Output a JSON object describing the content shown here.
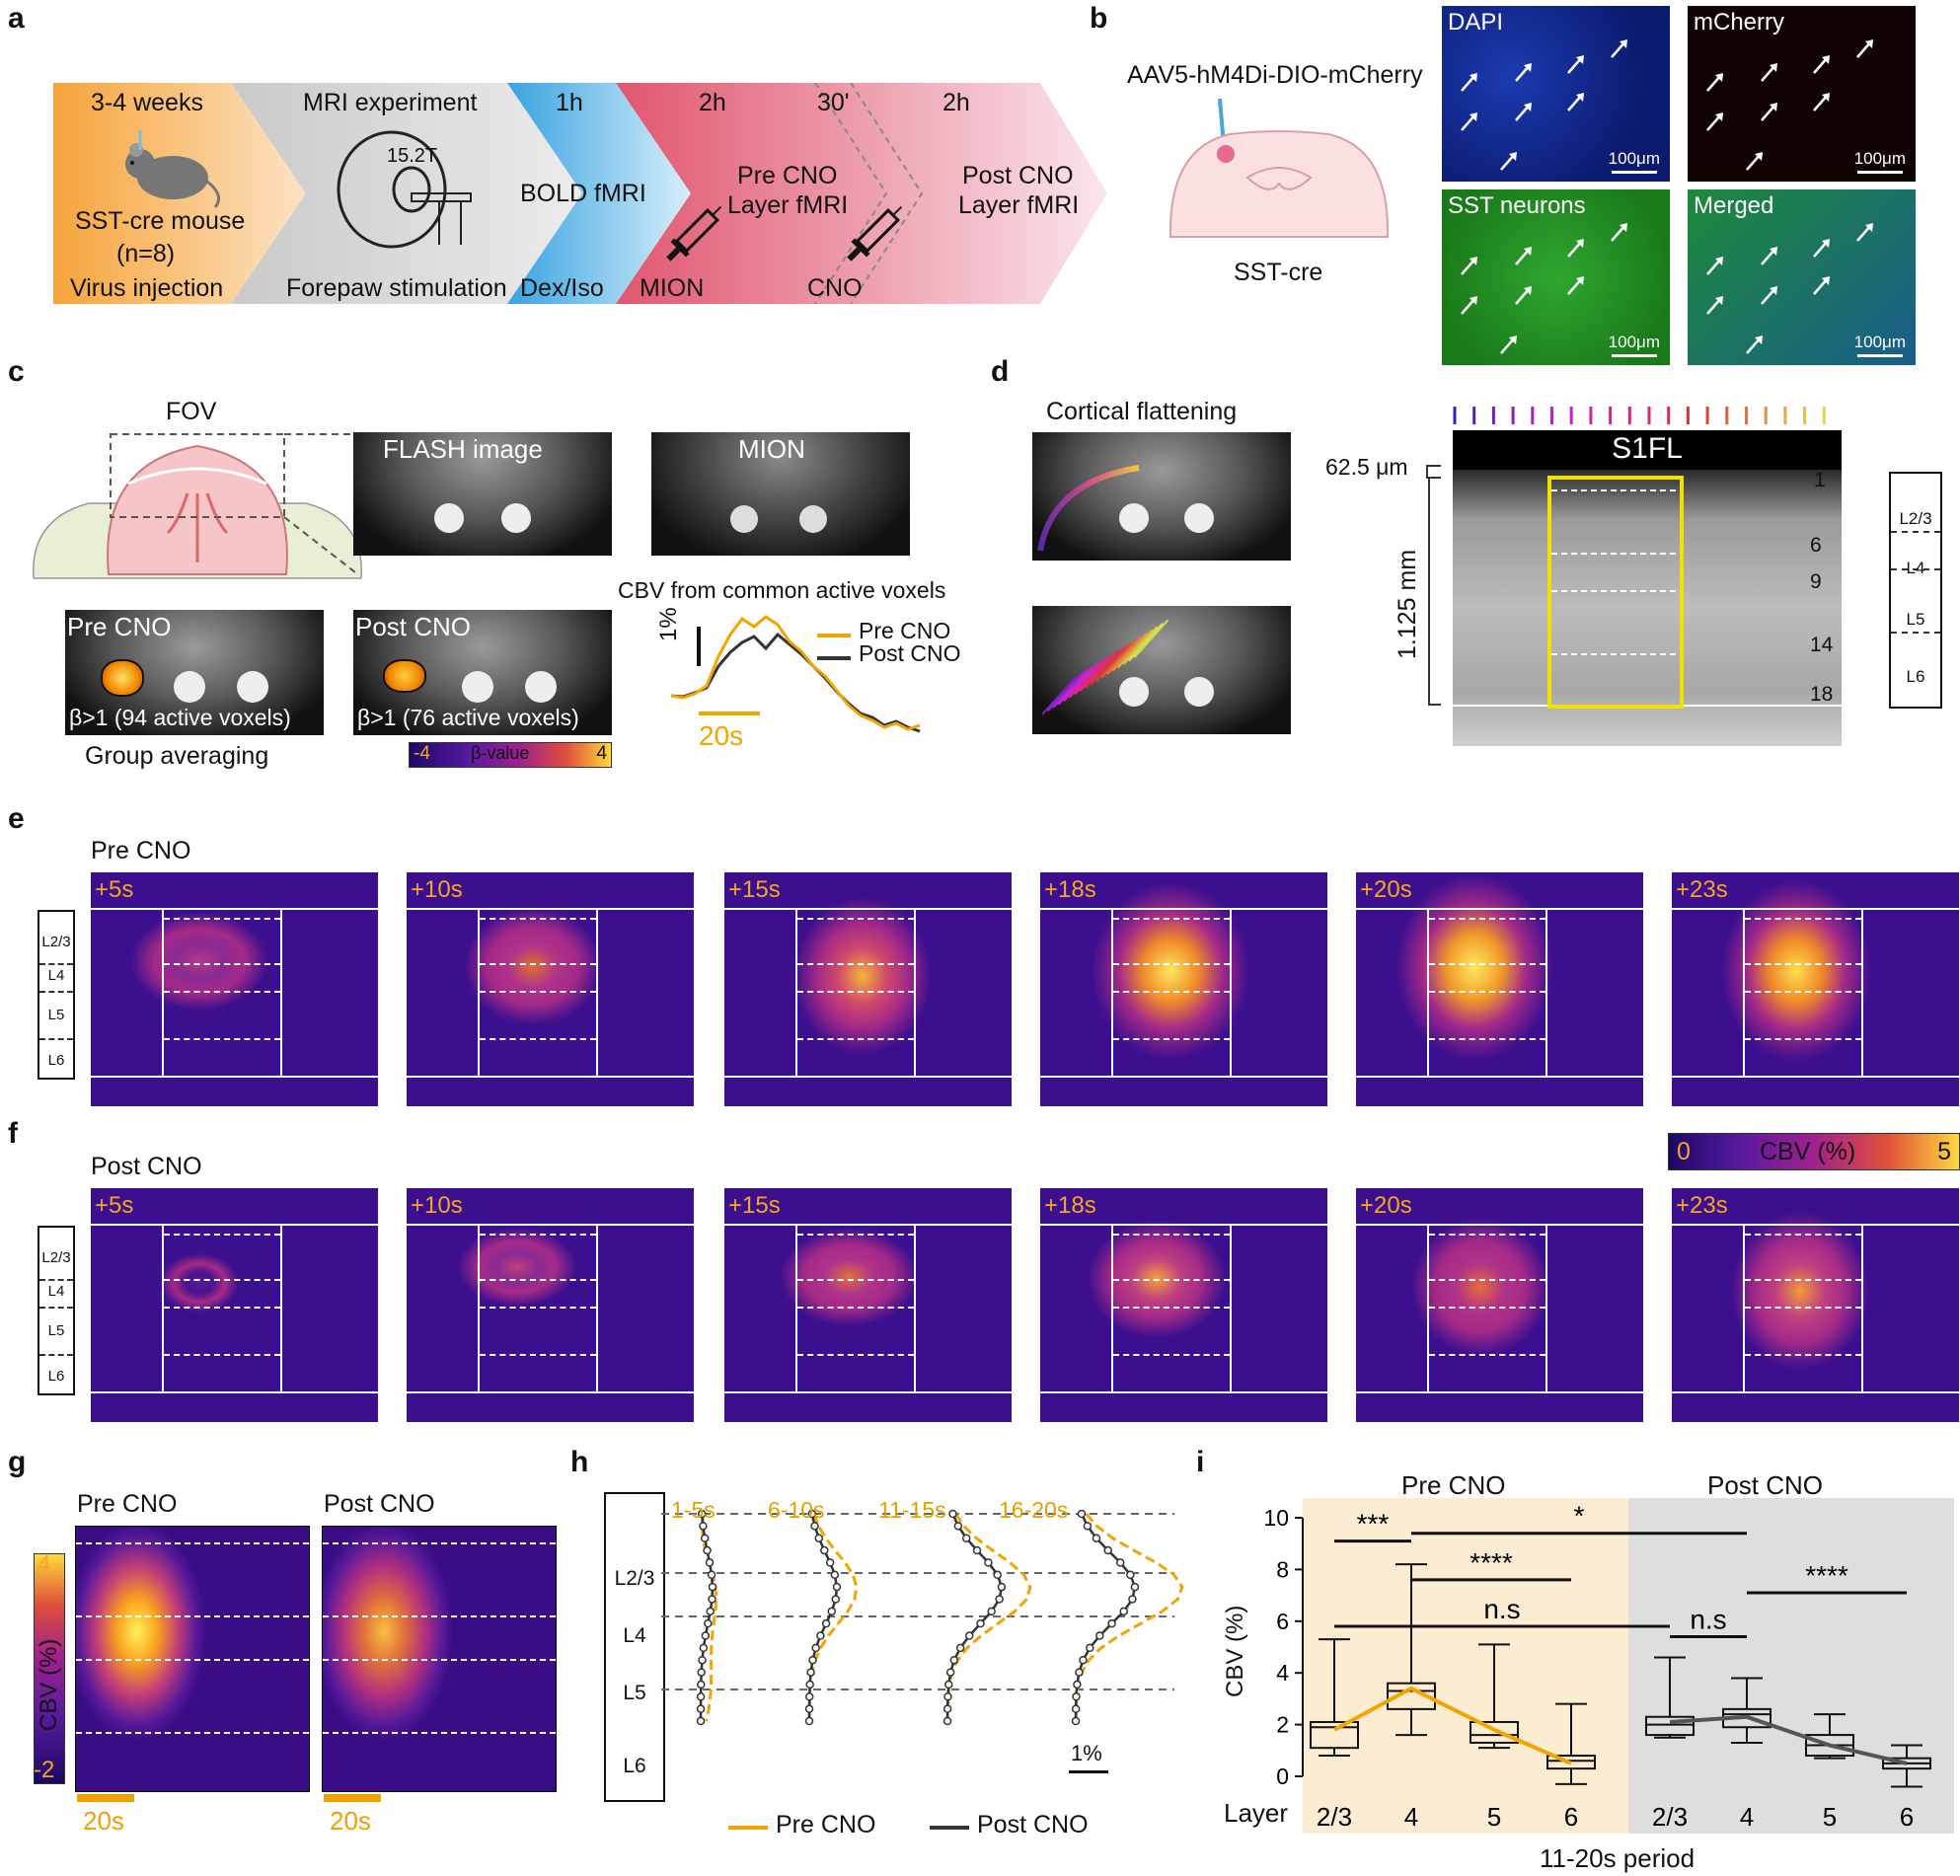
{
  "panel_letters": {
    "a": "a",
    "b": "b",
    "c": "c",
    "d": "d",
    "e": "e",
    "f": "f",
    "g": "g",
    "h": "h",
    "i": "i"
  },
  "panel_a": {
    "stages": [
      {
        "top": "3-4 weeks",
        "middle1": "SST-cre mouse",
        "middle2": "(n=8)",
        "bottom": "Virus injection",
        "color": "#f7a535"
      },
      {
        "top": "MRI experiment",
        "badge": "15.2T",
        "bottom": "Forepaw stimulation",
        "color": "#c8c8c8"
      },
      {
        "top": "1h",
        "middle1": "BOLD fMRI",
        "bottom": "Dex/Iso",
        "color": "#3aa6e0"
      },
      {
        "top": "2h",
        "middle1": "Pre CNO",
        "middle2": "Layer fMRI",
        "bottom": "MION",
        "color": "#e0566f"
      },
      {
        "top": "30'",
        "bottom": "CNO",
        "color": "#ea7a8c"
      },
      {
        "top": "2h",
        "middle1": "Post CNO",
        "middle2": "Layer fMRI",
        "color": "#f4b3c2"
      }
    ]
  },
  "panel_b": {
    "virus": "AAV5-hM4Di-DIO-mCherry",
    "strain": "SST-cre",
    "images": [
      {
        "label": "DAPI",
        "scale": "100μm",
        "bg": "#0a1a6e"
      },
      {
        "label": "mCherry",
        "scale": "100μm",
        "bg": "#120404"
      },
      {
        "label": "SST neurons",
        "scale": "100μm",
        "bg": "#1f8a1f"
      },
      {
        "label": "Merged",
        "scale": "100μm",
        "bg": "#1c6b4a"
      }
    ]
  },
  "panel_c": {
    "fov": "FOV",
    "flash": "FLASH image",
    "mion": "MION",
    "pre": "Pre CNO",
    "post": "Post CNO",
    "pre_voxels": "β>1 (94 active voxels)",
    "post_voxels": "β>1 (76 active voxels)",
    "group": "Group averaging",
    "colorbar_min": "-4",
    "colorbar_label": "β-value",
    "colorbar_max": "4",
    "trace_title": "CBV from common active voxels",
    "trace_scale_y": "1%",
    "trace_scale_x": "20s",
    "legend_pre": "Pre CNO",
    "legend_post": "Post CNO",
    "color_pre": "#f0a500",
    "color_post": "#333333"
  },
  "panel_d": {
    "title": "Cortical flattening",
    "region": "S1FL",
    "thickness": "62.5 μm",
    "depth": "1.125 mm",
    "ticks": [
      "1",
      "6",
      "9",
      "14",
      "18"
    ],
    "layers": [
      "L2/3",
      "L4",
      "L5",
      "L6"
    ]
  },
  "panel_e": {
    "title": "Pre CNO",
    "times": [
      "+5s",
      "+10s",
      "+15s",
      "+18s",
      "+20s",
      "+23s"
    ],
    "layers": [
      "L2/3",
      "L4",
      "L5",
      "L6"
    ]
  },
  "panel_f": {
    "title": "Post CNO",
    "times": [
      "+5s",
      "+10s",
      "+15s",
      "+18s",
      "+20s",
      "+23s"
    ],
    "layers": [
      "L2/3",
      "L4",
      "L5",
      "L6"
    ],
    "colorbar_min": "0",
    "colorbar_label": "CBV (%)",
    "colorbar_max": "5"
  },
  "panel_g": {
    "pre": "Pre CNO",
    "post": "Post CNO",
    "cb_max": "4",
    "cb_label": "CBV (%)",
    "cb_min": "-2",
    "scale": "20s",
    "scale2": "20s"
  },
  "panel_h": {
    "periods": [
      "1-5s",
      "6-10s",
      "11-15s",
      "16-20s"
    ],
    "layers": [
      "L2/3",
      "L4",
      "L5",
      "L6"
    ],
    "scale": "1%",
    "legend_pre": "Pre CNO",
    "legend_post": "Post CNO"
  },
  "chart_data": {
    "type": "box",
    "group_labels": [
      "Pre CNO",
      "Post CNO"
    ],
    "categories": [
      "2/3",
      "4",
      "5",
      "6"
    ],
    "x_prefix": "Layer",
    "xlabel": "11-20s period",
    "ylabel": "CBV (%)",
    "ylim": [
      0,
      10
    ],
    "yticks": [
      0,
      2,
      4,
      6,
      8,
      10
    ],
    "series": [
      {
        "name": "Pre CNO",
        "color": "#f0a500",
        "boxes": [
          {
            "layer": "2/3",
            "min": 0.8,
            "q1": 1.1,
            "median": 1.9,
            "q3": 2.1,
            "max": 5.3
          },
          {
            "layer": "4",
            "min": 1.6,
            "q1": 2.6,
            "median": 3.3,
            "q3": 3.6,
            "max": 8.2
          },
          {
            "layer": "5",
            "min": 1.1,
            "q1": 1.3,
            "median": 1.6,
            "q3": 2.1,
            "max": 5.1
          },
          {
            "layer": "6",
            "min": -0.3,
            "q1": 0.3,
            "median": 0.6,
            "q3": 0.8,
            "max": 2.8
          }
        ],
        "means": [
          1.8,
          3.4,
          1.8,
          0.5
        ]
      },
      {
        "name": "Post CNO",
        "color": "#555555",
        "boxes": [
          {
            "layer": "2/3",
            "min": 1.5,
            "q1": 1.6,
            "median": 2.0,
            "q3": 2.3,
            "max": 4.6
          },
          {
            "layer": "4",
            "min": 1.3,
            "q1": 1.9,
            "median": 2.4,
            "q3": 2.6,
            "max": 3.8
          },
          {
            "layer": "5",
            "min": 0.7,
            "q1": 0.8,
            "median": 1.2,
            "q3": 1.6,
            "max": 2.4
          },
          {
            "layer": "6",
            "min": -0.4,
            "q1": 0.3,
            "median": 0.5,
            "q3": 0.7,
            "max": 1.2
          }
        ],
        "means": [
          2.1,
          2.3,
          1.2,
          0.5
        ]
      }
    ],
    "significance": [
      {
        "label": "***"
      },
      {
        "label": "*"
      },
      {
        "label": "****"
      },
      {
        "label": "n.s"
      },
      {
        "label": "n.s"
      },
      {
        "label": "****"
      }
    ]
  }
}
